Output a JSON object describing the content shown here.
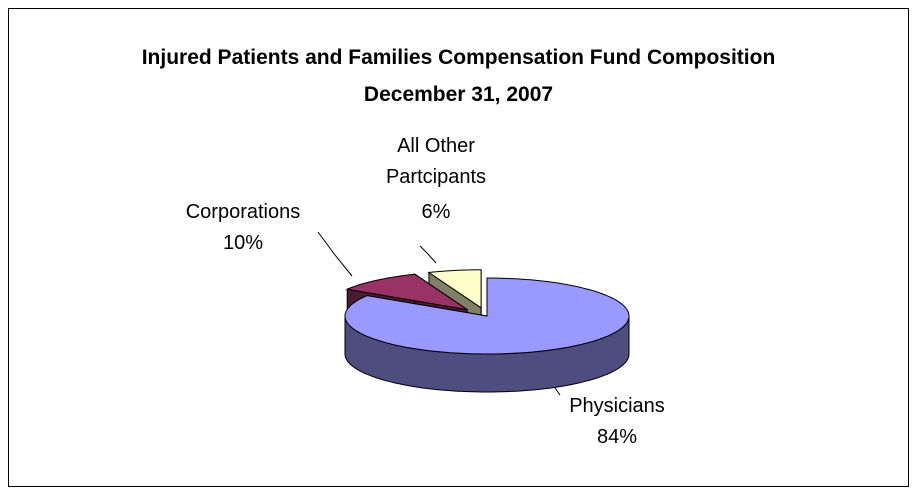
{
  "chart_data": {
    "type": "pie3d",
    "title": "Injured Patients and Families Compensation Fund Composition",
    "subtitle": "December 31, 2007",
    "categories": [
      "Physicians",
      "Corporations",
      "All Other Partcipants"
    ],
    "values": [
      84,
      10,
      6
    ],
    "value_labels": [
      "84%",
      "10%",
      "6%"
    ],
    "colors": [
      "#9999ff",
      "#993366",
      "#ffffcc"
    ]
  }
}
